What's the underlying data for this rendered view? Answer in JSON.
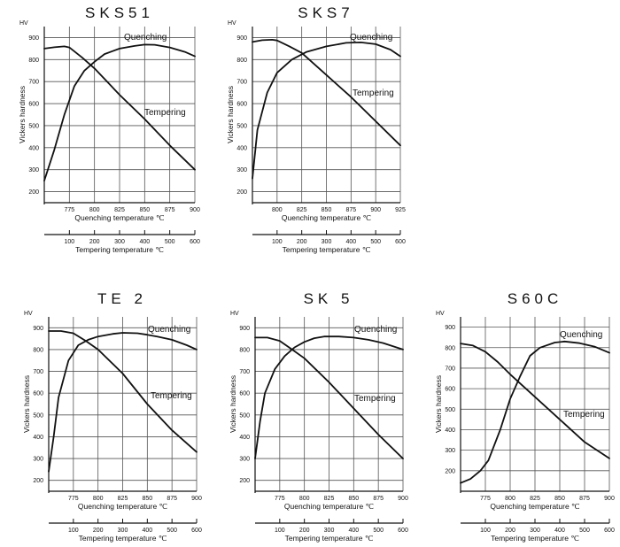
{
  "chart_data": [
    {
      "type": "line",
      "title": "SKS51",
      "ylabel": "Vickers hardness",
      "yunit": "HV",
      "ylim": [
        150,
        950
      ],
      "yticks": [
        200,
        300,
        400,
        500,
        600,
        700,
        800,
        900
      ],
      "quench_axis": {
        "label": "Quenching temperature  ℃",
        "range": [
          750,
          900
        ],
        "ticks": [
          775,
          800,
          825,
          850,
          875,
          900
        ]
      },
      "temper_axis": {
        "label": "Tempering temperature  ℃",
        "range": [
          0,
          600
        ],
        "ticks": [
          100,
          200,
          300,
          400,
          500,
          600
        ]
      },
      "series": [
        {
          "name": "Quenching",
          "axis": "quench",
          "x": [
            750,
            760,
            770,
            780,
            790,
            800,
            810,
            825,
            840,
            850,
            860,
            875,
            890,
            900
          ],
          "y": [
            250,
            390,
            550,
            680,
            750,
            790,
            825,
            850,
            862,
            868,
            867,
            855,
            835,
            815
          ]
        },
        {
          "name": "Tempering",
          "axis": "temper",
          "x": [
            0,
            40,
            80,
            100,
            150,
            200,
            300,
            400,
            500,
            600
          ],
          "y": [
            850,
            856,
            860,
            855,
            810,
            760,
            640,
            530,
            410,
            300
          ]
        }
      ]
    },
    {
      "type": "line",
      "title": "SKS7",
      "ylabel": "Vickers hardness",
      "yunit": "HV",
      "ylim": [
        150,
        950
      ],
      "yticks": [
        200,
        300,
        400,
        500,
        600,
        700,
        800,
        900
      ],
      "quench_axis": {
        "label": "Quenching temperature  ℃",
        "range": [
          775,
          925
        ],
        "ticks": [
          800,
          825,
          850,
          875,
          900,
          925
        ]
      },
      "temper_axis": {
        "label": "Tempering temperature  ℃",
        "range": [
          0,
          600
        ],
        "ticks": [
          100,
          200,
          300,
          400,
          500,
          600
        ]
      },
      "series": [
        {
          "name": "Quenching",
          "axis": "quench",
          "x": [
            775,
            780,
            790,
            800,
            815,
            830,
            850,
            870,
            885,
            900,
            915,
            925
          ],
          "y": [
            260,
            480,
            650,
            740,
            800,
            835,
            860,
            876,
            878,
            870,
            845,
            815
          ]
        },
        {
          "name": "Tempering",
          "axis": "temper",
          "x": [
            0,
            40,
            80,
            100,
            150,
            200,
            300,
            400,
            500,
            600
          ],
          "y": [
            880,
            888,
            890,
            887,
            860,
            830,
            730,
            630,
            520,
            410
          ]
        }
      ]
    },
    {
      "type": "line",
      "title": "TE 2",
      "ylabel": "Vickers hardness",
      "yunit": "HV",
      "ylim": [
        150,
        950
      ],
      "yticks": [
        200,
        300,
        400,
        500,
        600,
        700,
        800,
        900
      ],
      "quench_axis": {
        "label": "Quenching temperature  ℃",
        "range": [
          750,
          900
        ],
        "ticks": [
          775,
          800,
          825,
          850,
          875,
          900
        ]
      },
      "temper_axis": {
        "label": "Tempering temperature  ℃",
        "range": [
          0,
          600
        ],
        "ticks": [
          100,
          200,
          300,
          400,
          500,
          600
        ]
      },
      "series": [
        {
          "name": "Quenching",
          "axis": "quench",
          "x": [
            750,
            755,
            760,
            770,
            780,
            790,
            800,
            815,
            825,
            840,
            850,
            860,
            875,
            890,
            900
          ],
          "y": [
            240,
            400,
            580,
            750,
            820,
            845,
            860,
            872,
            877,
            875,
            868,
            860,
            845,
            820,
            800
          ]
        },
        {
          "name": "Tempering",
          "axis": "temper",
          "x": [
            0,
            50,
            100,
            150,
            200,
            300,
            400,
            500,
            600
          ],
          "y": [
            885,
            885,
            875,
            840,
            800,
            690,
            550,
            430,
            330
          ]
        }
      ]
    },
    {
      "type": "line",
      "title": "SK 5",
      "ylabel": "Vickers hardness",
      "yunit": "HV",
      "ylim": [
        150,
        950
      ],
      "yticks": [
        200,
        300,
        400,
        500,
        600,
        700,
        800,
        900
      ],
      "quench_axis": {
        "label": "Quenching temperature  ℃",
        "range": [
          750,
          900
        ],
        "ticks": [
          775,
          800,
          825,
          850,
          875,
          900
        ]
      },
      "temper_axis": {
        "label": "Tempering temperature  ℃",
        "range": [
          0,
          600
        ],
        "ticks": [
          100,
          200,
          300,
          400,
          500,
          600
        ]
      },
      "series": [
        {
          "name": "Quenching",
          "axis": "quench",
          "x": [
            750,
            755,
            760,
            770,
            780,
            790,
            800,
            810,
            820,
            835,
            850,
            865,
            880,
            900
          ],
          "y": [
            300,
            470,
            600,
            710,
            770,
            810,
            835,
            852,
            860,
            860,
            855,
            845,
            830,
            800
          ]
        },
        {
          "name": "Tempering",
          "axis": "temper",
          "x": [
            0,
            50,
            100,
            150,
            200,
            300,
            400,
            500,
            600
          ],
          "y": [
            855,
            855,
            840,
            800,
            760,
            650,
            530,
            410,
            300
          ]
        }
      ]
    },
    {
      "type": "line",
      "title": "S60C",
      "ylabel": "Vickers hardness",
      "yunit": "HV",
      "ylim": [
        100,
        950
      ],
      "yticks": [
        200,
        300,
        400,
        500,
        600,
        700,
        800,
        900
      ],
      "quench_axis": {
        "label": "Quenching temperature  ℃",
        "range": [
          750,
          900
        ],
        "ticks": [
          775,
          800,
          825,
          850,
          875,
          900
        ]
      },
      "temper_axis": {
        "label": "Tempering temperature  ℃",
        "range": [
          0,
          600
        ],
        "ticks": [
          100,
          200,
          300,
          400,
          500,
          600
        ]
      },
      "series": [
        {
          "name": "Quenching",
          "axis": "quench",
          "x": [
            750,
            760,
            770,
            778,
            790,
            800,
            810,
            820,
            830,
            845,
            855,
            870,
            885,
            900
          ],
          "y": [
            140,
            160,
            200,
            250,
            400,
            550,
            660,
            760,
            800,
            825,
            830,
            822,
            805,
            775
          ]
        },
        {
          "name": "Tempering",
          "axis": "temper",
          "x": [
            0,
            50,
            100,
            150,
            200,
            300,
            400,
            500,
            600
          ],
          "y": [
            820,
            810,
            780,
            730,
            670,
            560,
            450,
            340,
            260
          ]
        }
      ]
    }
  ]
}
